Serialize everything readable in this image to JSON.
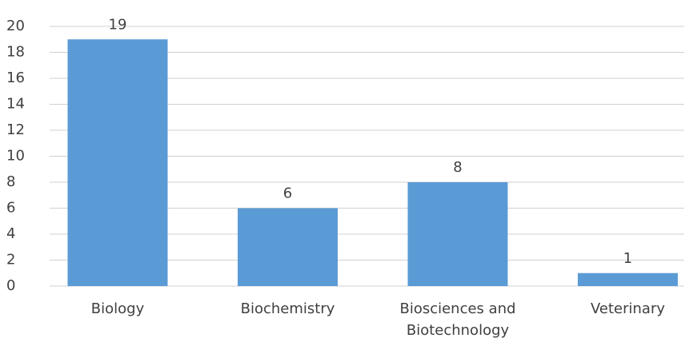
{
  "chart_data": {
    "type": "bar",
    "categories": [
      "Biology",
      "Biochemistry",
      "Biosciences and Biotechnology",
      "Veterinary"
    ],
    "values": [
      19,
      6,
      8,
      1
    ],
    "color": "#5b9bd5",
    "ylim": [
      0,
      20
    ],
    "yticks": [
      0,
      2,
      4,
      6,
      8,
      10,
      12,
      14,
      16,
      18,
      20
    ],
    "grid": true
  }
}
